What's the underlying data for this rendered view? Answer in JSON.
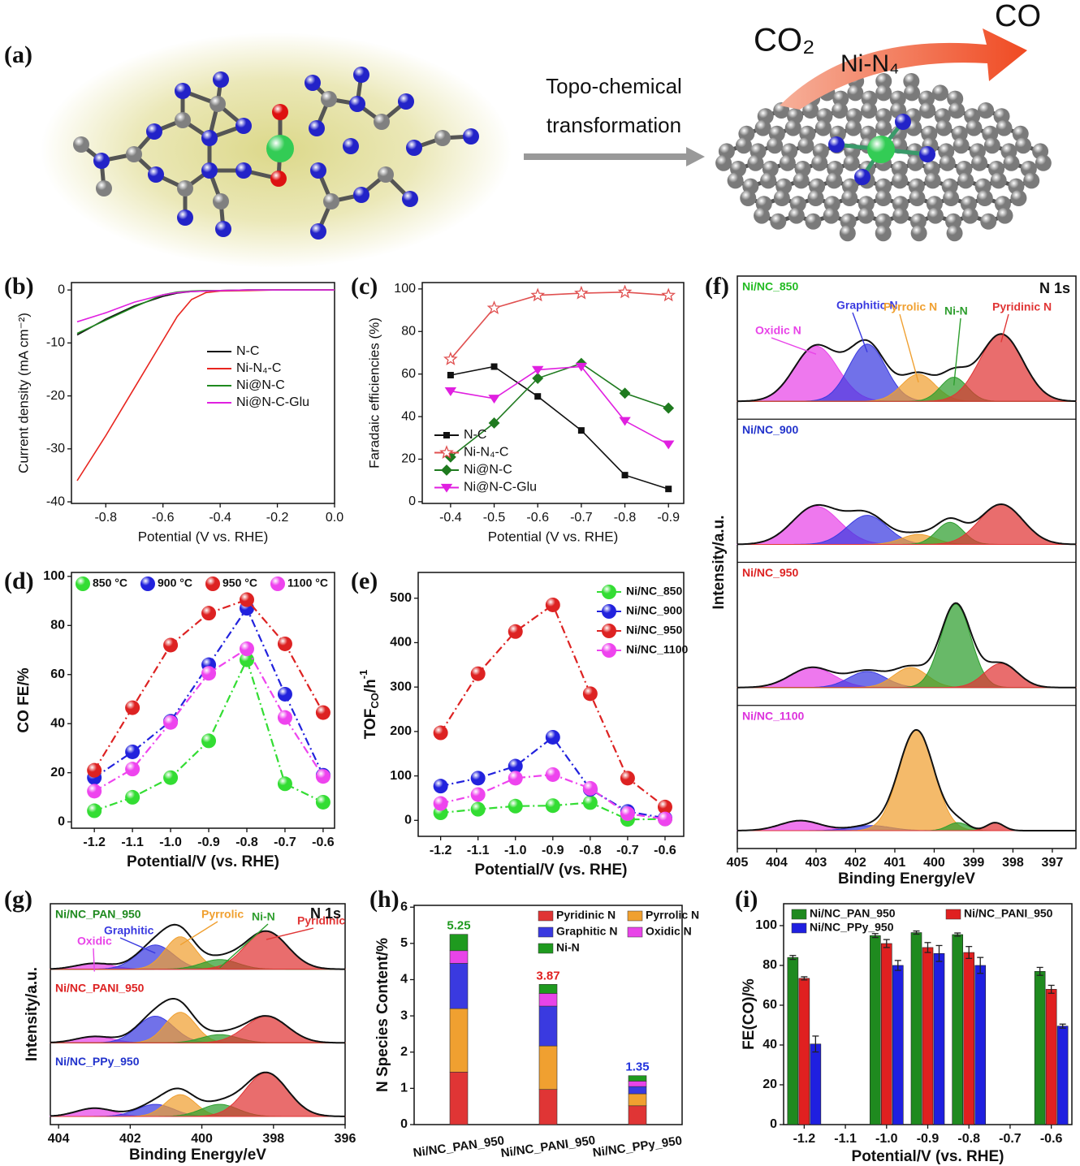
{
  "scheme": {
    "label": "(a)",
    "arrow_text_1": "Topo-chemical",
    "arrow_text_2": "transformation",
    "reactant": "CO₂",
    "site": "Ni-N₄",
    "product": "CO"
  },
  "chart_data": [
    {
      "label": "(b)",
      "type": "line",
      "xlabel": "Potential (V vs. RHE)",
      "ylabel": "Current density (mA cm⁻²)",
      "x": [
        -0.9,
        -0.8,
        -0.7,
        -0.6,
        -0.55,
        -0.5,
        -0.45,
        -0.4,
        -0.3,
        -0.2,
        -0.1,
        0
      ],
      "xlim": [
        -0.92,
        0
      ],
      "xticks": [
        -0.8,
        -0.6,
        -0.4,
        -0.2,
        {
          "value": 0,
          "label": "0.0"
        }
      ],
      "ylim": [
        -40.3,
        1.4
      ],
      "yticks": [
        0,
        -10,
        -20,
        -30,
        -40
      ],
      "series": [
        {
          "name": "N-C",
          "color": "#111111",
          "values": [
            -8.5,
            -5.5,
            -3,
            -1.2,
            -0.6,
            -0.3,
            -0.2,
            -0.1,
            0,
            0,
            0,
            0
          ]
        },
        {
          "name": "Ni-N₄-C",
          "color": "#e8251f",
          "values": [
            -36,
            -27.5,
            -18.5,
            -9.5,
            -5,
            -1.8,
            -0.5,
            -0.2,
            -0.1,
            0,
            0,
            0
          ]
        },
        {
          "name": "Ni@N-C",
          "color": "#1f8a1f",
          "values": [
            -8.2,
            -5.7,
            -3.2,
            -0.9,
            -0.4,
            -0.2,
            -0.1,
            -0.1,
            0,
            0,
            0,
            0
          ]
        },
        {
          "name": "Ni@N-C-Glu",
          "color": "#e020e0",
          "values": [
            -6,
            -4.3,
            -2.3,
            -0.9,
            -0.5,
            -0.3,
            -0.2,
            -0.1,
            0,
            0,
            0,
            0
          ]
        }
      ]
    },
    {
      "label": "(c)",
      "type": "line",
      "xlabel": "Potential (V vs. RHE)",
      "ylabel": "Faradaic efficiencies (%)",
      "x": [
        -0.4,
        -0.5,
        -0.6,
        -0.7,
        -0.8,
        -0.9
      ],
      "xlim": [
        -0.335,
        -0.935
      ],
      "xticks": [
        -0.4,
        -0.5,
        -0.6,
        -0.7,
        -0.8,
        -0.9
      ],
      "ylim": [
        -0.8,
        103
      ],
      "yticks": [
        0,
        20,
        40,
        60,
        80,
        100
      ],
      "series": [
        {
          "name": "N-C",
          "color": "#111111",
          "marker": "square",
          "values": [
            59.5,
            63.5,
            49.5,
            33.5,
            12.5,
            6
          ]
        },
        {
          "name": "Ni-N₄-C",
          "color": "#e05050",
          "marker": "star",
          "values": [
            67,
            91,
            97,
            98,
            98.5,
            97
          ]
        },
        {
          "name": "Ni@N-C",
          "color": "#1f7a1f",
          "marker": "diamond",
          "values": [
            21,
            37,
            58,
            65,
            51,
            44
          ]
        },
        {
          "name": "Ni@N-C-Glu",
          "color": "#e020e0",
          "marker": "triangle-down",
          "values": [
            52,
            48.5,
            62,
            63.5,
            38,
            27
          ]
        }
      ]
    },
    {
      "label": "(d)",
      "type": "line",
      "line_style": "dashdot",
      "xlabel": "Potential/V (vs. RHE)",
      "ylabel": "CO FE/%",
      "x": [
        -1.2,
        -1.1,
        -1.0,
        -0.9,
        -0.8,
        -0.7,
        -0.6
      ],
      "xlim": [
        -1.26,
        -0.57
      ],
      "xticks": [
        -1.2,
        -1.1,
        {
          "value": -1,
          "label": "-1.0"
        },
        -0.9,
        -0.8,
        -0.7,
        -0.6
      ],
      "ylim": [
        -2.6,
        101.6
      ],
      "yticks": [
        0,
        20,
        40,
        60,
        80,
        100
      ],
      "series": [
        {
          "name": "850 °C",
          "color": "#33dd33",
          "marker": "sphere",
          "values": [
            4.5,
            10,
            18,
            33,
            66,
            15.5,
            8
          ]
        },
        {
          "name": "900 °C",
          "color": "#2222dd",
          "marker": "sphere",
          "values": [
            18,
            28.5,
            41,
            64,
            87,
            52,
            19
          ]
        },
        {
          "name": "950 °C",
          "color": "#dd2222",
          "marker": "sphere",
          "values": [
            21,
            46.5,
            72,
            85,
            90.5,
            72.5,
            44.5
          ]
        },
        {
          "name": "1100 °C",
          "color": "#ee44ee",
          "marker": "sphere",
          "values": [
            12.5,
            21.5,
            40.5,
            60.5,
            70.5,
            42.5,
            18.5
          ]
        }
      ]
    },
    {
      "label": "(e)",
      "type": "line",
      "line_style": "dashdot",
      "xlabel": "Potential/V (vs. RHE)",
      "ylabel": "TOF",
      "ylabel_sub": "CO",
      "ylabel_suffix": "/h",
      "ylabel_sup": "-1",
      "x": [
        -1.2,
        -1.1,
        -1.0,
        -0.9,
        -0.8,
        -0.7,
        -0.6
      ],
      "xlim": [
        -1.26,
        -0.55
      ],
      "xticks": [
        -1.2,
        -1.1,
        {
          "value": -1,
          "label": "-1.0"
        },
        -0.9,
        -0.8,
        -0.7,
        -0.6
      ],
      "ylim": [
        -36,
        558
      ],
      "yticks": [
        0,
        100,
        200,
        300,
        400,
        500
      ],
      "series": [
        {
          "name": "Ni/NC_850",
          "color": "#33dd33",
          "marker": "sphere",
          "values": [
            17,
            25,
            32,
            33,
            40,
            2,
            3
          ]
        },
        {
          "name": "Ni/NC_900",
          "color": "#2222dd",
          "marker": "sphere",
          "values": [
            77,
            95,
            122,
            187,
            70,
            20,
            5
          ]
        },
        {
          "name": "Ni/NC_950",
          "color": "#dd2222",
          "marker": "sphere",
          "values": [
            197,
            330,
            425,
            485,
            285,
            95,
            30
          ]
        },
        {
          "name": "Ni/NC_1100",
          "color": "#ee44ee",
          "marker": "sphere",
          "values": [
            38,
            58,
            95,
            103,
            72,
            15,
            3
          ]
        }
      ]
    },
    {
      "label": "(f)",
      "type": "xps",
      "xlabel": "Binding Energy/eV",
      "ylabel": "Intensity/a.u.",
      "note": "N 1s",
      "xlim": [
        405,
        396.4
      ],
      "xticks": [
        405,
        404,
        403,
        402,
        401,
        400,
        399,
        398,
        397
      ],
      "ylim": [
        0,
        1.15
      ],
      "components": [
        {
          "label": "Oxidic N",
          "color": "#e844e8"
        },
        {
          "label": "Graphitic N",
          "color": "#3a3ae0"
        },
        {
          "label": "Pyrrolic N",
          "color": "#f0a030"
        },
        {
          "label": "Ni-N",
          "color": "#2e9e2e"
        },
        {
          "label": "Pyridinic N",
          "color": "#e03535"
        }
      ],
      "panels": [
        {
          "name": "Ni/NC_850",
          "name_color": "#22bb22",
          "centers": [
            403.0,
            401.7,
            400.4,
            399.5,
            398.3
          ],
          "heights": [
            0.55,
            0.57,
            0.27,
            0.24,
            0.67
          ],
          "fwhm": [
            1.3,
            1.1,
            1.0,
            0.8,
            1.3
          ]
        },
        {
          "name": "Ni/NC_900",
          "name_color": "#2233cc",
          "centers": [
            403.0,
            401.7,
            400.4,
            399.6,
            398.3
          ],
          "heights": [
            0.38,
            0.29,
            0.1,
            0.22,
            0.4
          ],
          "fwhm": [
            1.4,
            1.2,
            1.0,
            0.8,
            1.3
          ]
        },
        {
          "name": "Ni/NC_950",
          "name_color": "#dd2222",
          "centers": [
            403.1,
            401.7,
            400.6,
            399.45,
            398.3
          ],
          "heights": [
            0.2,
            0.16,
            0.2,
            0.83,
            0.24
          ],
          "fwhm": [
            1.3,
            1.1,
            1.0,
            0.9,
            1.0
          ]
        },
        {
          "name": "Ni/NC_1100",
          "name_color": "#dd33dd",
          "centers": [
            403.4,
            401.6,
            400.45,
            399.4,
            398.45
          ],
          "heights": [
            0.1,
            0.05,
            1.0,
            0.08,
            0.08
          ],
          "fwhm": [
            1.2,
            1.2,
            1.05,
            0.6,
            0.5
          ]
        }
      ]
    },
    {
      "label": "(g)",
      "type": "xps",
      "xlabel": "Binding Energy/eV",
      "ylabel": "Intensity/a.u.",
      "note": "N 1s",
      "xlim": [
        404.23,
        396
      ],
      "xticks": [
        404,
        402,
        400,
        398,
        396
      ],
      "ylim": [
        0,
        1.15
      ],
      "components": [
        {
          "label": "Oxidic",
          "color": "#e844e8"
        },
        {
          "label": "Graphitic",
          "color": "#3a3ae0"
        },
        {
          "label": "Pyrrolic",
          "color": "#f0a030"
        },
        {
          "label": "Ni-N",
          "color": "#2e9e2e"
        },
        {
          "label": "Pyridinic",
          "color": "#e03535"
        }
      ],
      "panels": [
        {
          "name": "Ni/NC_PAN_950",
          "name_color": "#1f8a1f",
          "centers": [
            403.0,
            401.3,
            400.6,
            399.5,
            398.2
          ],
          "heights": [
            0.12,
            0.5,
            0.67,
            0.2,
            0.78
          ],
          "fwhm": [
            1.2,
            1.2,
            1.0,
            1.2,
            1.4
          ]
        },
        {
          "name": "Ni/NC_PANI_950",
          "name_color": "#dd2222",
          "centers": [
            403.0,
            401.3,
            400.6,
            399.5,
            398.2
          ],
          "heights": [
            0.13,
            0.55,
            0.63,
            0.17,
            0.55
          ],
          "fwhm": [
            1.2,
            1.2,
            1.0,
            1.2,
            1.4
          ]
        },
        {
          "name": "Ni/NC_PPy_950",
          "name_color": "#2233cc",
          "centers": [
            403.0,
            401.3,
            400.6,
            399.5,
            398.2
          ],
          "heights": [
            0.17,
            0.25,
            0.45,
            0.25,
            0.9
          ],
          "fwhm": [
            1.2,
            1.2,
            1.0,
            1.2,
            1.4
          ]
        }
      ]
    },
    {
      "label": "(h)",
      "type": "stacked_bar",
      "ylabel": "N Species Content/%",
      "categories": [
        "Ni/NC_PAN_950",
        "Ni/NC_PANI_950",
        "Ni/NC_PPy_950"
      ],
      "ylim": [
        0,
        6.05
      ],
      "yticks": [
        0,
        1,
        2,
        3,
        4,
        5,
        6
      ],
      "series": [
        {
          "name": "Pyridinic N",
          "color": "#e03535",
          "values": [
            1.45,
            0.97,
            0.52
          ]
        },
        {
          "name": "Pyrrolic N",
          "color": "#f0a030",
          "values": [
            1.75,
            1.2,
            0.33
          ]
        },
        {
          "name": "Graphitic N",
          "color": "#3a3ae0",
          "values": [
            1.25,
            1.1,
            0.2
          ]
        },
        {
          "name": "Oxidic N",
          "color": "#e844e8",
          "values": [
            0.35,
            0.35,
            0.15
          ]
        },
        {
          "name": "Ni-N",
          "color": "#1f9a1f",
          "values": [
            0.45,
            0.25,
            0.15
          ]
        }
      ],
      "totals": [
        5.25,
        3.87,
        1.35
      ],
      "total_colors": [
        "#1f9a1f",
        "#e02020",
        "#2233dd"
      ]
    },
    {
      "label": "(i)",
      "type": "grouped_bar",
      "xlabel": "Potential/V (vs. RHE)",
      "ylabel": "FE(CO)/%",
      "categories": [
        "-1.2",
        "-1.1",
        "-1.0",
        "-0.9",
        "-0.8",
        "-0.7",
        "-0.6"
      ],
      "ylim": [
        0,
        111
      ],
      "yticks": [
        0,
        20,
        40,
        60,
        80,
        100
      ],
      "series": [
        {
          "name": "Ni/NC_PAN_950",
          "color": "#1f8a1f",
          "values": [
            84,
            null,
            95,
            96.5,
            95.5,
            null,
            77
          ],
          "errors": [
            1,
            null,
            1,
            0.8,
            0.8,
            null,
            2
          ]
        },
        {
          "name": "Ni/NC_PANI_950",
          "color": "#e02020",
          "values": [
            73.5,
            null,
            91,
            89,
            86.5,
            null,
            68
          ],
          "errors": [
            0.8,
            null,
            2,
            2.5,
            3,
            null,
            2
          ]
        },
        {
          "name": "Ni/NC_PPy_950",
          "color": "#1f1fe0",
          "values": [
            40.5,
            null,
            80,
            86,
            80,
            null,
            49.5
          ],
          "errors": [
            4,
            null,
            2.5,
            4,
            4,
            null,
            1
          ]
        }
      ]
    }
  ]
}
